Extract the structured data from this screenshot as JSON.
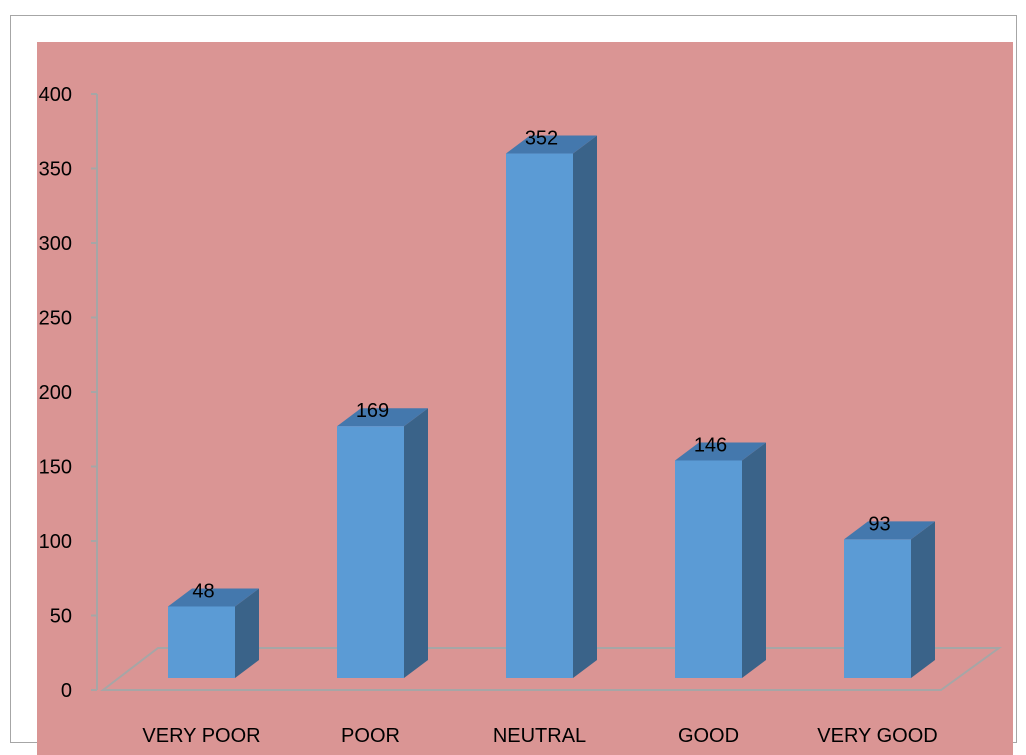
{
  "chart_data": {
    "type": "bar",
    "categories": [
      "VERY POOR",
      "POOR",
      "NEUTRAL",
      "GOOD",
      "VERY GOOD"
    ],
    "values": [
      48,
      169,
      352,
      146,
      93
    ],
    "title": "",
    "xlabel": "",
    "ylabel": "",
    "ylim": [
      0,
      400
    ],
    "yticks": [
      "0",
      "50",
      "100",
      "150",
      "200",
      "250",
      "300",
      "350",
      "400"
    ],
    "data_labels": [
      "48",
      "169",
      "352",
      "146",
      "93"
    ],
    "grid": false,
    "legend": "none",
    "style": "3d-column"
  },
  "colors": {
    "plot_background": "#da9594",
    "bar_front": "#5b9bd5",
    "bar_side": "#3a6389",
    "bar_top": "#4478ad",
    "axis_line": "#a6a6a6"
  }
}
